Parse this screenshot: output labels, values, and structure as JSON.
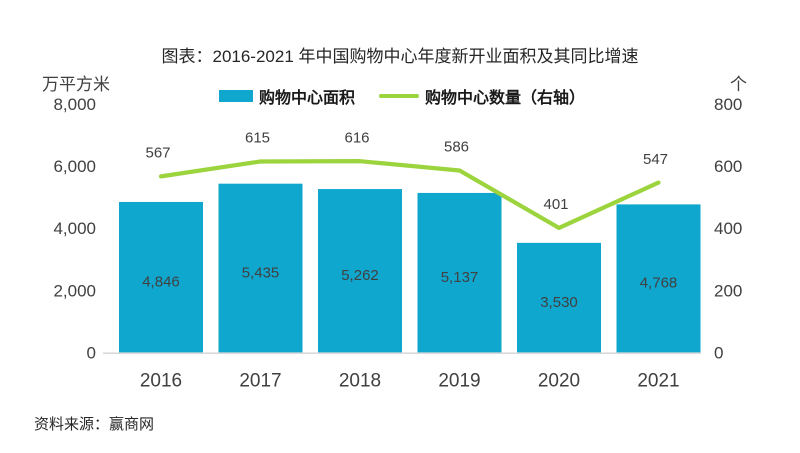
{
  "title": "图表：2016-2021 年中国购物中心年度新开业面积及其同比增速",
  "source": "资料来源：赢商网",
  "legend": {
    "bar_label": "购物中心面积",
    "line_label": "购物中心数量（右轴）"
  },
  "axes": {
    "left_unit": "万平方米",
    "right_unit": "个",
    "left_ticks": [
      "8,000",
      "6,000",
      "4,000",
      "2,000",
      "0"
    ],
    "right_ticks": [
      "800",
      "600",
      "400",
      "200",
      "0"
    ]
  },
  "colors": {
    "bar": "#10A7CF",
    "line": "#9CD43E",
    "data_label": "#404040",
    "axis_line": "#D9D9D9"
  },
  "chart_data": {
    "type": "bar+line",
    "title": "图表：2016-2021 年中国购物中心年度新开业面积及其同比增速",
    "categories": [
      "2016",
      "2017",
      "2018",
      "2019",
      "2020",
      "2021"
    ],
    "series": [
      {
        "name": "购物中心面积",
        "type": "bar",
        "axis": "left",
        "values": [
          4846,
          5435,
          5262,
          5137,
          3530,
          4768
        ],
        "labels": [
          "4,846",
          "5,435",
          "5,262",
          "5,137",
          "3,530",
          "4,768"
        ]
      },
      {
        "name": "购物中心数量（右轴）",
        "type": "line",
        "axis": "right",
        "values": [
          567,
          615,
          616,
          586,
          401,
          547
        ],
        "labels": [
          "567",
          "615",
          "616",
          "586",
          "401",
          "547"
        ]
      }
    ],
    "ylabel_left": "万平方米",
    "ylabel_right": "个",
    "ylim_left": [
      0,
      8000
    ],
    "ylim_right": [
      0,
      800
    ],
    "grid": false,
    "legend_position": "top-center"
  }
}
